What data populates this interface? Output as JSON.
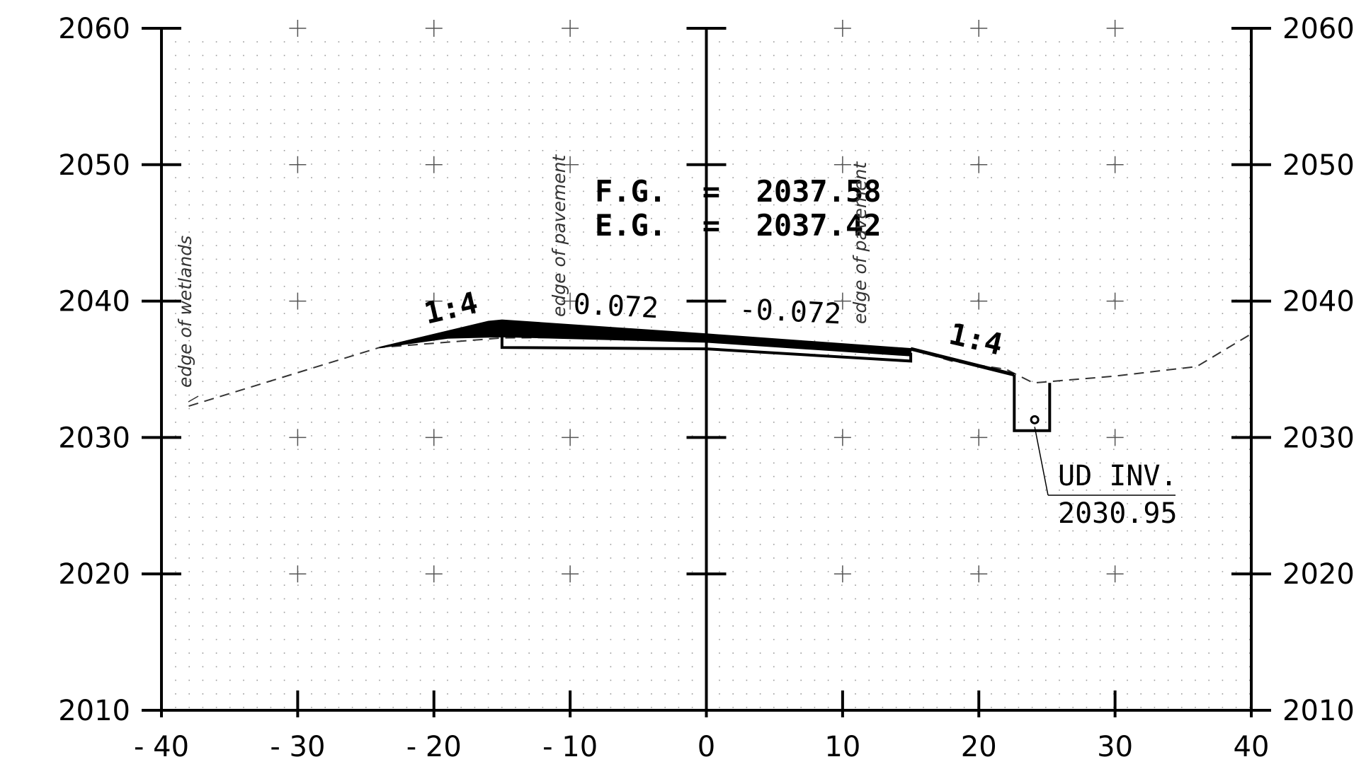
{
  "chart_data": {
    "type": "cross-section",
    "x_ticks": [
      "-40",
      "-30",
      "-20",
      "-10",
      "0",
      "10",
      "20",
      "30",
      "40"
    ],
    "y_ticks": [
      "2010",
      "2020",
      "2030",
      "2040",
      "2050",
      "2060"
    ],
    "xlim": [
      -40,
      40
    ],
    "ylim": [
      2010,
      2060
    ],
    "grid": "dotted with crosshair markers",
    "annotations": {
      "fg": "F.G.  =  2037.58",
      "eg": "E.G.  =  2037.42",
      "slope_left": "1:4",
      "slope_right": "1:4",
      "cross_slope_left": "0.072",
      "cross_slope_right": "-0.072",
      "edge_wetlands": "edge of wetlands",
      "edge_pavement_left": "edge of pavement",
      "edge_pavement_right": "edge of pavement",
      "ud_label": "UD INV.",
      "ud_value": "2030.95"
    },
    "existing_ground": [
      [
        -38,
        2032.3
      ],
      [
        -24,
        2036.6
      ],
      [
        -15,
        2037.3
      ],
      [
        0,
        2037.42
      ],
      [
        15,
        2036.5
      ],
      [
        18,
        2035.6
      ],
      [
        22,
        2035.0
      ],
      [
        24,
        2034.0
      ],
      [
        30,
        2034.5
      ],
      [
        36,
        2035.2
      ],
      [
        40,
        2037.6
      ]
    ],
    "finished_grade_top": [
      [
        -24,
        2036.6
      ],
      [
        -16,
        2038.5
      ],
      [
        -15,
        2038.6
      ],
      [
        0,
        2037.58
      ],
      [
        15,
        2036.5
      ],
      [
        22.6,
        2034.6
      ]
    ],
    "finished_grade_bottom": [
      [
        -24,
        2036.6
      ],
      [
        -19,
        2037.3
      ],
      [
        -15,
        2037.4
      ],
      [
        0,
        2037.0
      ],
      [
        15,
        2036.0
      ]
    ],
    "base_course": [
      [
        -15,
        2037.4
      ],
      [
        -15,
        2036.6
      ],
      [
        0,
        2036.5
      ],
      [
        15,
        2035.6
      ],
      [
        15,
        2036.2
      ]
    ],
    "underdrain_trench": [
      [
        22.6,
        2034.6
      ],
      [
        22.6,
        2030.5
      ],
      [
        25.2,
        2030.5
      ],
      [
        25.2,
        2034.0
      ]
    ],
    "underdrain_pipe": [
      24.1,
      2031.3
    ]
  }
}
